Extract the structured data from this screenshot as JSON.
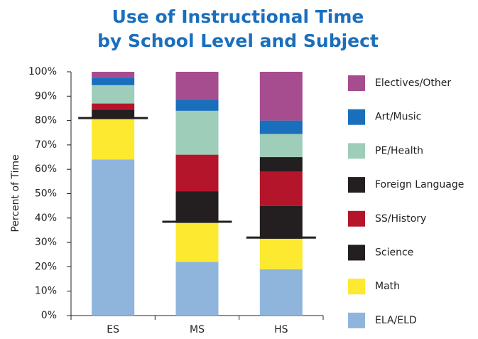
{
  "chart_data": {
    "type": "stacked_bar",
    "title": [
      "Use of Instructional Time",
      "by School Level and Subject"
    ],
    "y_label": "Percent of Time",
    "categories": [
      "ES",
      "MS",
      "HS"
    ],
    "series": [
      {
        "name": "ELA/ELD",
        "color": "#8fb5dd",
        "values": [
          64,
          22,
          19
        ]
      },
      {
        "name": "Math",
        "color": "#fde930",
        "values": [
          17,
          16,
          12.5
        ]
      },
      {
        "name": "Science",
        "color": "#231f20",
        "values": [
          3.5,
          13,
          13.5
        ]
      },
      {
        "name": "SS/History",
        "color": "#b5152b",
        "values": [
          2.5,
          15,
          14
        ]
      },
      {
        "name": "Foreign Language",
        "color": "#231f20",
        "values": [
          0,
          0,
          6
        ]
      },
      {
        "name": "PE/Health",
        "color": "#9ecdb9",
        "values": [
          7.5,
          18,
          9.5
        ]
      },
      {
        "name": "Art/Music",
        "color": "#1a6fbd",
        "values": [
          3,
          4.5,
          5.5
        ]
      },
      {
        "name": "Electives/Other",
        "color": "#a64d8f",
        "values": [
          2.5,
          11.5,
          20
        ]
      }
    ],
    "reference_lines": [
      81,
      38.5,
      32
    ],
    "reference_color": "#231f20",
    "ylim": [
      0,
      100
    ],
    "yticks": [
      {
        "value": 0,
        "label": "0%"
      },
      {
        "value": 10,
        "label": "10%"
      },
      {
        "value": 20,
        "label": "20%"
      },
      {
        "value": 30,
        "label": "30%"
      },
      {
        "value": 40,
        "label": "40%"
      },
      {
        "value": 50,
        "label": "50%"
      },
      {
        "value": 60,
        "label": "60%"
      },
      {
        "value": 70,
        "label": "70%"
      },
      {
        "value": 80,
        "label": "80%"
      },
      {
        "value": 90,
        "label": "90%"
      },
      {
        "value": 100,
        "label": "100%"
      }
    ],
    "legend": "right",
    "legend_order": "reversed"
  }
}
